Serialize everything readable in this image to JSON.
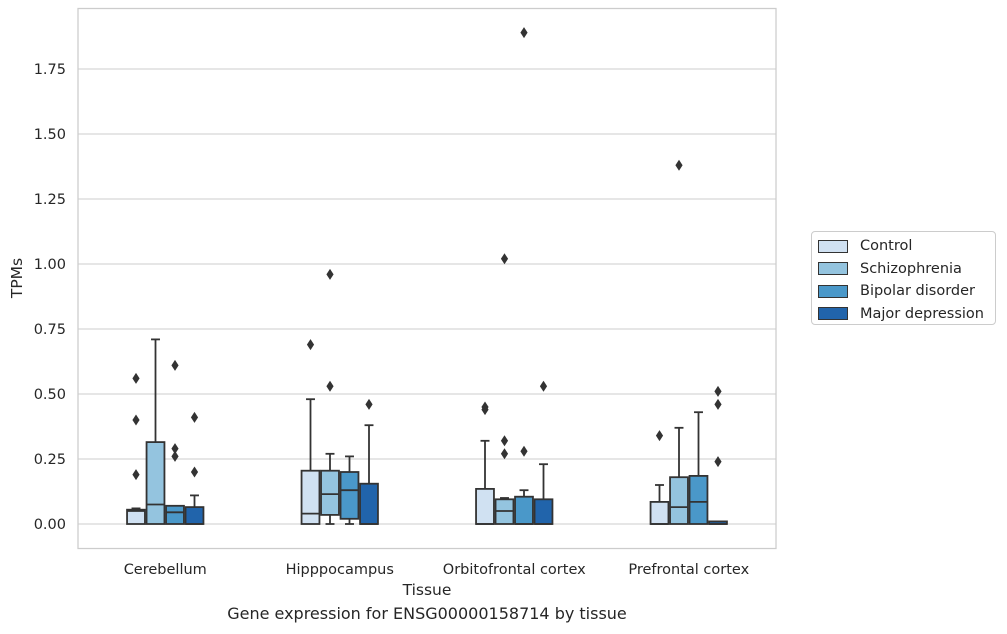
{
  "chart_data": {
    "type": "box",
    "title": "Gene expression for ENSG00000158714 by tissue",
    "xlabel": "Tissue",
    "ylabel": "TPMs",
    "ylim": [
      -0.09,
      1.98
    ],
    "yticks": [
      "0.00",
      "0.25",
      "0.50",
      "0.75",
      "1.00",
      "1.25",
      "1.50",
      "1.75"
    ],
    "ytick_values": [
      0,
      0.25,
      0.5,
      0.75,
      1.0,
      1.25,
      1.5,
      1.75
    ],
    "categories": [
      "Cerebellum",
      "Hipppocampus",
      "Orbitofrontal cortex",
      "Prefrontal cortex"
    ],
    "grid": "horizontal",
    "legend_position": "right",
    "series": [
      {
        "name": "Control",
        "color": "#d0e1f2",
        "boxes": [
          {
            "q1": 0.0,
            "median": 0.05,
            "q3": 0.055,
            "whislo": 0.0,
            "whishi": 0.06,
            "fliers": [
              0.19,
              0.4,
              0.56
            ]
          },
          {
            "q1": 0.0,
            "median": 0.04,
            "q3": 0.205,
            "whislo": 0.0,
            "whishi": 0.48,
            "fliers": [
              0.69
            ]
          },
          {
            "q1": 0.0,
            "median": 0.0,
            "q3": 0.135,
            "whislo": 0.0,
            "whishi": 0.32,
            "fliers": [
              0.44,
              0.45
            ]
          },
          {
            "q1": 0.0,
            "median": 0.0,
            "q3": 0.085,
            "whislo": 0.0,
            "whishi": 0.15,
            "fliers": [
              0.34
            ]
          }
        ]
      },
      {
        "name": "Schizophrenia",
        "color": "#94c4df",
        "boxes": [
          {
            "q1": 0.0,
            "median": 0.075,
            "q3": 0.315,
            "whislo": 0.0,
            "whishi": 0.71,
            "fliers": []
          },
          {
            "q1": 0.035,
            "median": 0.115,
            "q3": 0.205,
            "whislo": 0.0,
            "whishi": 0.27,
            "fliers": [
              0.53,
              0.96
            ]
          },
          {
            "q1": 0.0,
            "median": 0.05,
            "q3": 0.095,
            "whislo": 0.0,
            "whishi": 0.1,
            "fliers": [
              0.27,
              0.32,
              1.02
            ]
          },
          {
            "q1": 0.0,
            "median": 0.065,
            "q3": 0.18,
            "whislo": 0.0,
            "whishi": 0.37,
            "fliers": [
              1.38
            ]
          }
        ]
      },
      {
        "name": "Bipolar disorder",
        "color": "#4a98c9",
        "boxes": [
          {
            "q1": 0.0,
            "median": 0.045,
            "q3": 0.07,
            "whislo": 0.0,
            "whishi": 0.07,
            "fliers": [
              0.26,
              0.29,
              0.61
            ]
          },
          {
            "q1": 0.02,
            "median": 0.13,
            "q3": 0.2,
            "whislo": 0.0,
            "whishi": 0.26,
            "fliers": []
          },
          {
            "q1": 0.0,
            "median": 0.0,
            "q3": 0.105,
            "whislo": 0.0,
            "whishi": 0.13,
            "fliers": [
              0.28,
              1.89
            ]
          },
          {
            "q1": 0.0,
            "median": 0.085,
            "q3": 0.185,
            "whislo": 0.0,
            "whishi": 0.43,
            "fliers": []
          }
        ]
      },
      {
        "name": "Major depression",
        "color": "#2164ab",
        "boxes": [
          {
            "q1": 0.0,
            "median": 0.0,
            "q3": 0.065,
            "whislo": 0.0,
            "whishi": 0.11,
            "fliers": [
              0.2,
              0.41
            ]
          },
          {
            "q1": 0.0,
            "median": 0.0,
            "q3": 0.155,
            "whislo": 0.0,
            "whishi": 0.38,
            "fliers": [
              0.46
            ]
          },
          {
            "q1": 0.0,
            "median": 0.0,
            "q3": 0.095,
            "whislo": 0.0,
            "whishi": 0.23,
            "fliers": [
              0.53
            ]
          },
          {
            "q1": 0.0,
            "median": 0.0,
            "q3": 0.01,
            "whislo": 0.0,
            "whishi": 0.01,
            "fliers": [
              0.24,
              0.46,
              0.51
            ]
          }
        ]
      }
    ]
  }
}
